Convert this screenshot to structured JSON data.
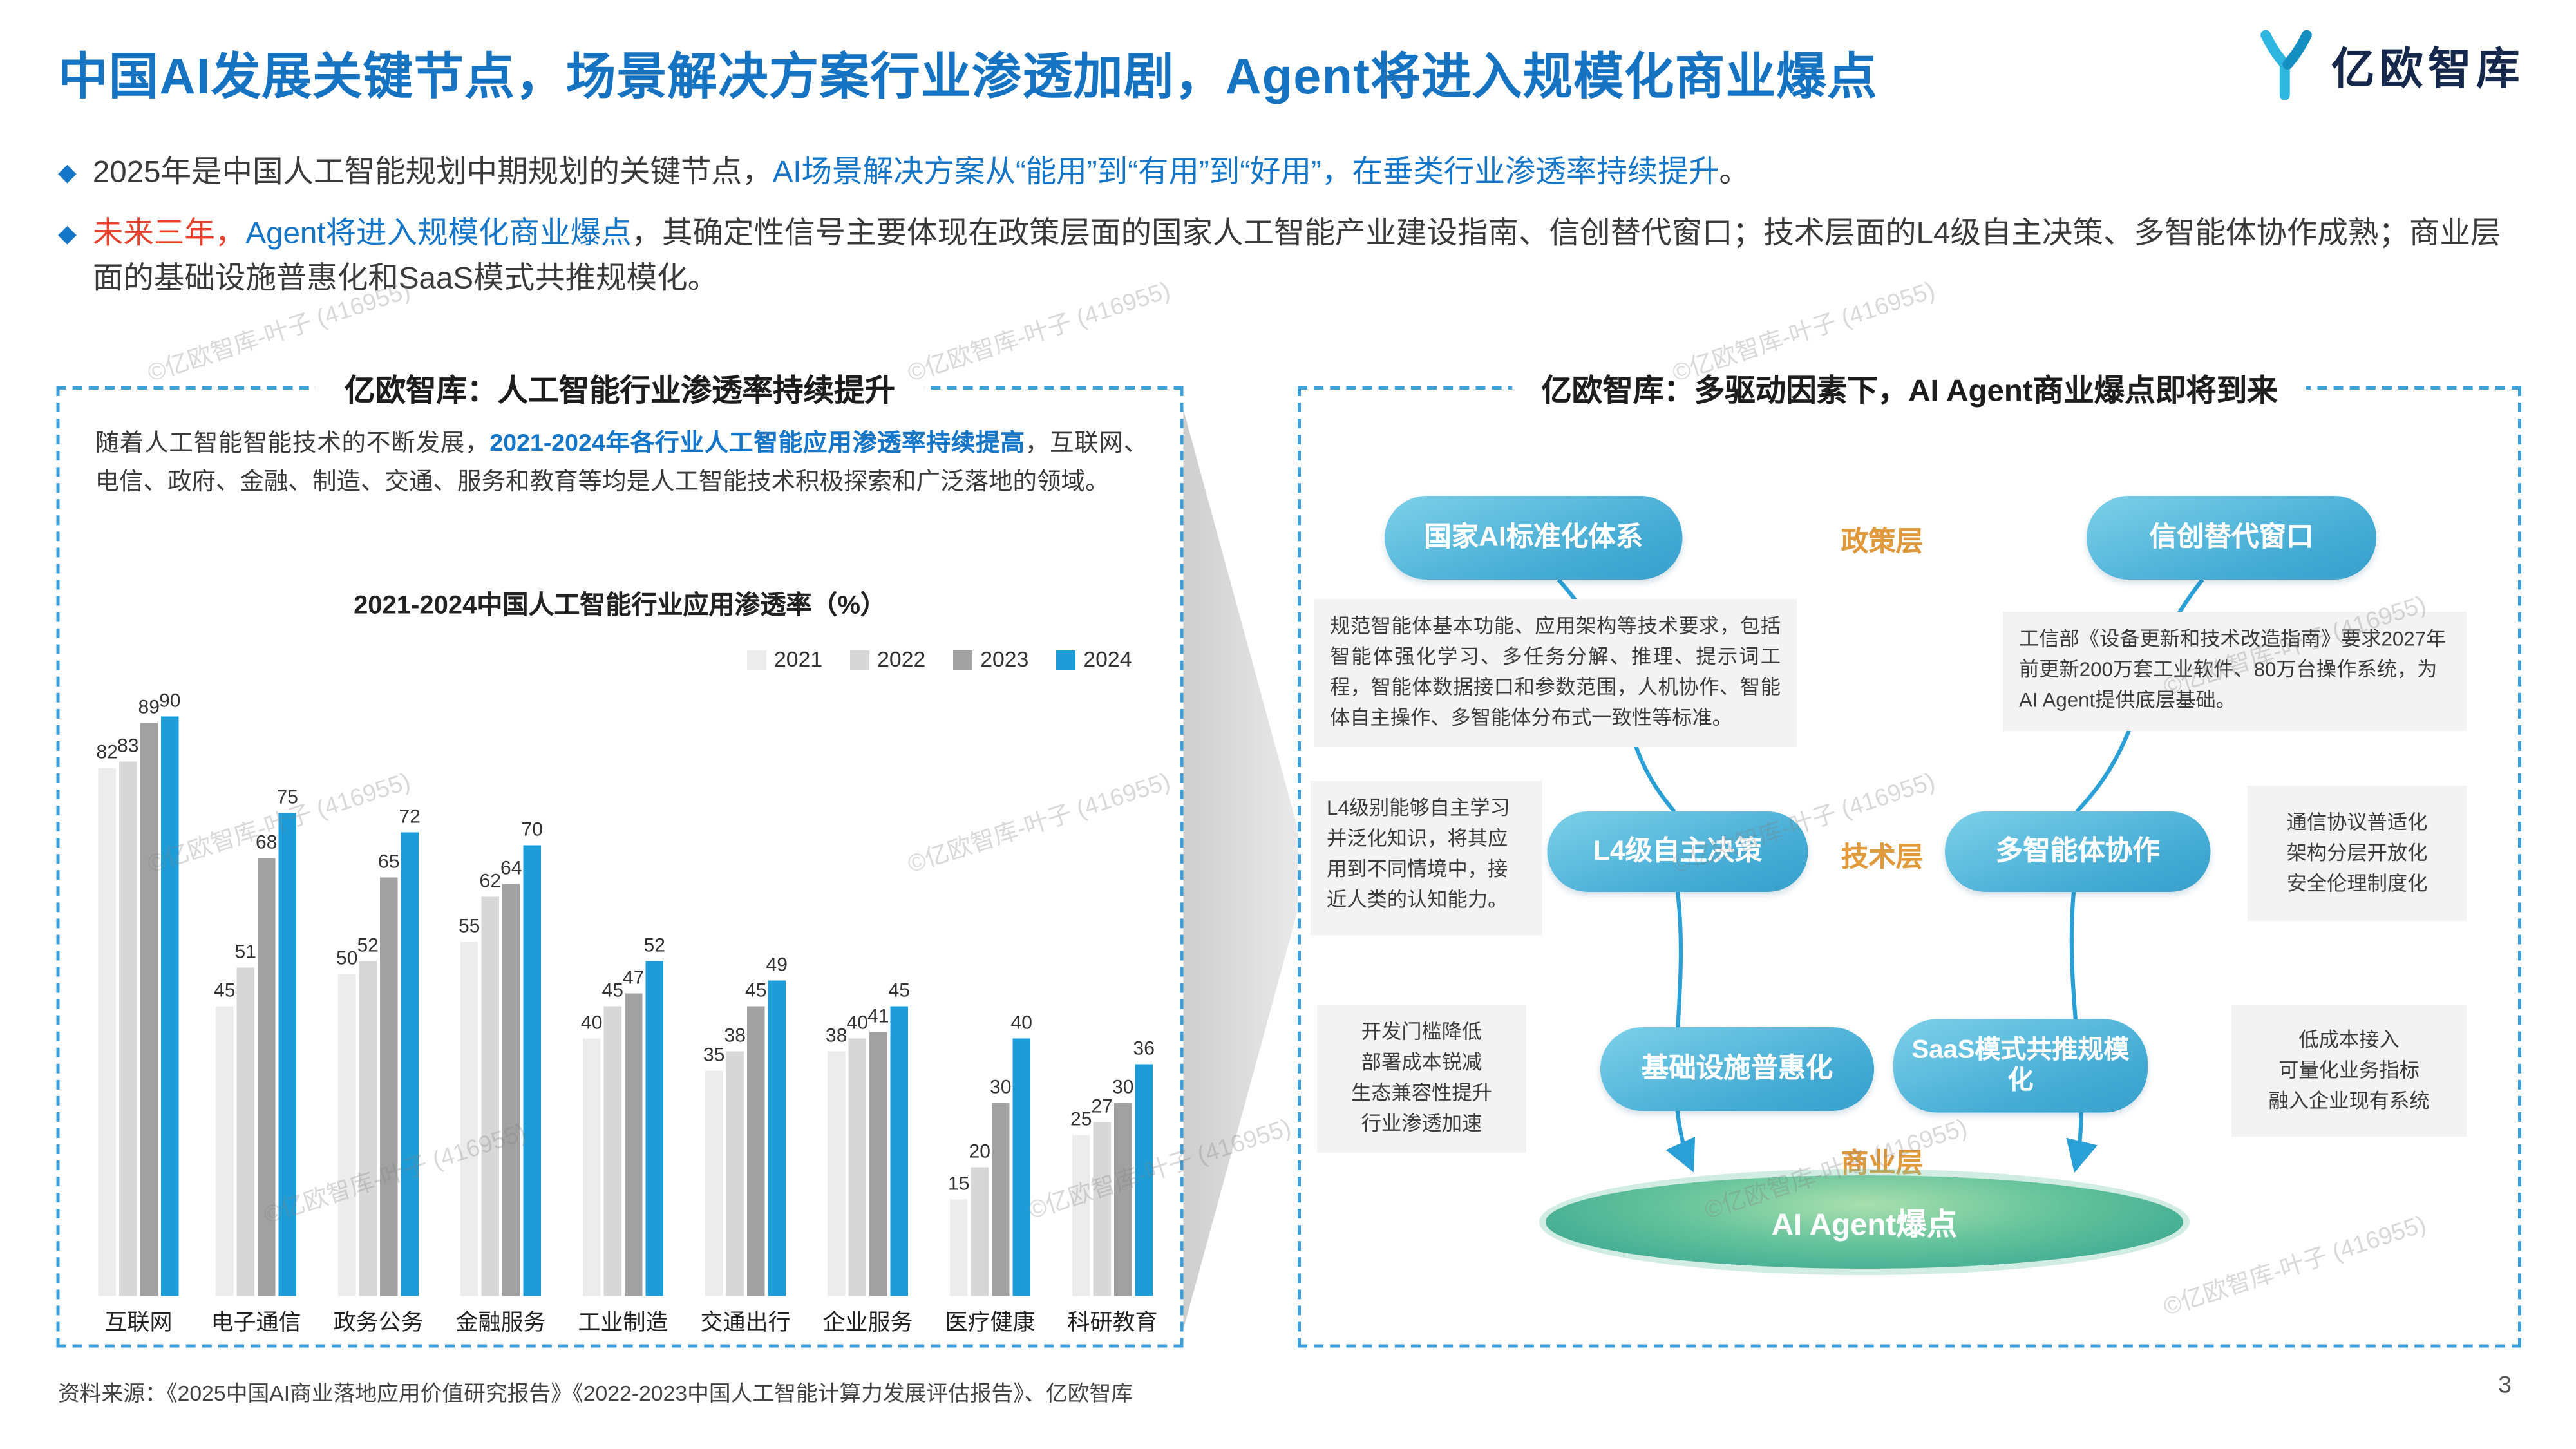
{
  "page": {
    "title": "中国AI发展关键节点，场景解决方案行业渗透加剧，Agent将进入规模化商业爆点"
  },
  "header": {
    "logo_text": "亿欧智库"
  },
  "bullets": {
    "b1": [
      {
        "text": "2025年是中国人工智能规划中期规划的关键节点，",
        "color": "#3a3a3a"
      },
      {
        "text": "AI场景解决方案从“能用”到“有用”到“好用”，在垂类行业渗透率持续提升",
        "color": "#1576c8"
      },
      {
        "text": "。",
        "color": "#3a3a3a"
      }
    ],
    "b2": [
      {
        "text": "未来三年，",
        "color": "#e8402a"
      },
      {
        "text": "Agent将进入规模化商业爆点",
        "color": "#1576c8"
      },
      {
        "text": "，其确定性信号主要体现在政策层面的国家人工智能产业建设指南、信创替代窗口；技术层面的L4级自主决策、多智能体协作成熟；商业层面的基础设施普惠化和SaaS模式共推规模化。",
        "color": "#3a3a3a"
      }
    ]
  },
  "left_panel": {
    "title": "亿欧智库：人工智能行业渗透率持续提升",
    "intro": [
      {
        "text": "随着人工智能智能技术的不断发展，",
        "color": "#3a3a3a"
      },
      {
        "text": "2021-2024年各行业人工智能应用渗透率持续提高",
        "color": "#1576c8",
        "bold": true
      },
      {
        "text": "，互联网、电信、政府、金融、制造、交通、服务和教育等均是人工智能技术积极探索和广泛落地的领域。",
        "color": "#3a3a3a"
      }
    ]
  },
  "chart_data": {
    "type": "bar",
    "title": "2021-2024中国人工智能行业应用渗透率（%）",
    "categories": [
      "互联网",
      "电子通信",
      "政务公务",
      "金融服务",
      "工业制造",
      "交通出行",
      "企业服务",
      "医疗健康",
      "科研教育"
    ],
    "series": [
      {
        "name": "2021",
        "color": "#ececec",
        "values": [
          82,
          45,
          50,
          55,
          40,
          35,
          38,
          15,
          25
        ]
      },
      {
        "name": "2022",
        "color": "#d7d7d7",
        "values": [
          83,
          51,
          52,
          62,
          45,
          38,
          40,
          20,
          27
        ]
      },
      {
        "name": "2023",
        "color": "#a1a1a1",
        "values": [
          89,
          68,
          65,
          64,
          47,
          45,
          41,
          30,
          30
        ]
      },
      {
        "name": "2024",
        "color": "#1e9cd7",
        "values": [
          90,
          75,
          72,
          70,
          52,
          49,
          45,
          40,
          36
        ]
      }
    ],
    "ylim": [
      0,
      100
    ],
    "grid": false,
    "legend_position": "top-right",
    "value_labels": true
  },
  "diagram": {
    "title": "亿欧智库：多驱动因素下，AI Agent商业爆点即将到来",
    "layers": {
      "policy": "政策层",
      "tech": "技术层",
      "biz": "商业层"
    },
    "pills": {
      "std": {
        "label": "国家AI标准化体系"
      },
      "xc": {
        "label": "信创替代窗口"
      },
      "l4": {
        "label": "L4级自主决策"
      },
      "multi": {
        "label": "多智能体协作"
      },
      "infra": {
        "label": "基础设施普惠化"
      },
      "saas": {
        "label": "SaaS模式共推规模化"
      }
    },
    "notes": {
      "policy_left": "规范智能体基本功能、应用架构等技术要求，包括智能体强化学习、多任务分解、推理、提示词工程，智能体数据接口和参数范围，人机协作、智能体自主操作、多智能体分布式一致性等标准。",
      "policy_right": "工信部《设备更新和技术改造指南》要求2027年前更新200万套工业软件、80万台操作系统，为AI Agent提供底层基础。",
      "l4": "L4级别能够自主学习并泛化知识，将其应用到不同情境中，接近人类的认知能力。",
      "tech_right": "通信协议普适化\n架构分层开放化\n安全伦理制度化",
      "biz_left": "开发门槛降低\n部署成本锐减\n生态兼容性提升\n行业渗透加速",
      "biz_right": "低成本接入\n可量化业务指标\n融入企业现有系统"
    },
    "ellipse_label": "AI Agent爆点",
    "accent_colors": {
      "pill_blue": "#44abd4",
      "layer_orange": "#e09a3c",
      "line_blue": "#2aa0d6",
      "burst_green": "#2f9f8d"
    }
  },
  "footer": {
    "source": "资料来源：《2025中国AI商业落地应用价值研究报告》《2022-2023中国人工智能计算力发展评估报告》、亿欧智库",
    "page_number": "3"
  },
  "watermark": {
    "text": "©亿欧智库-叶子 (416955)"
  }
}
